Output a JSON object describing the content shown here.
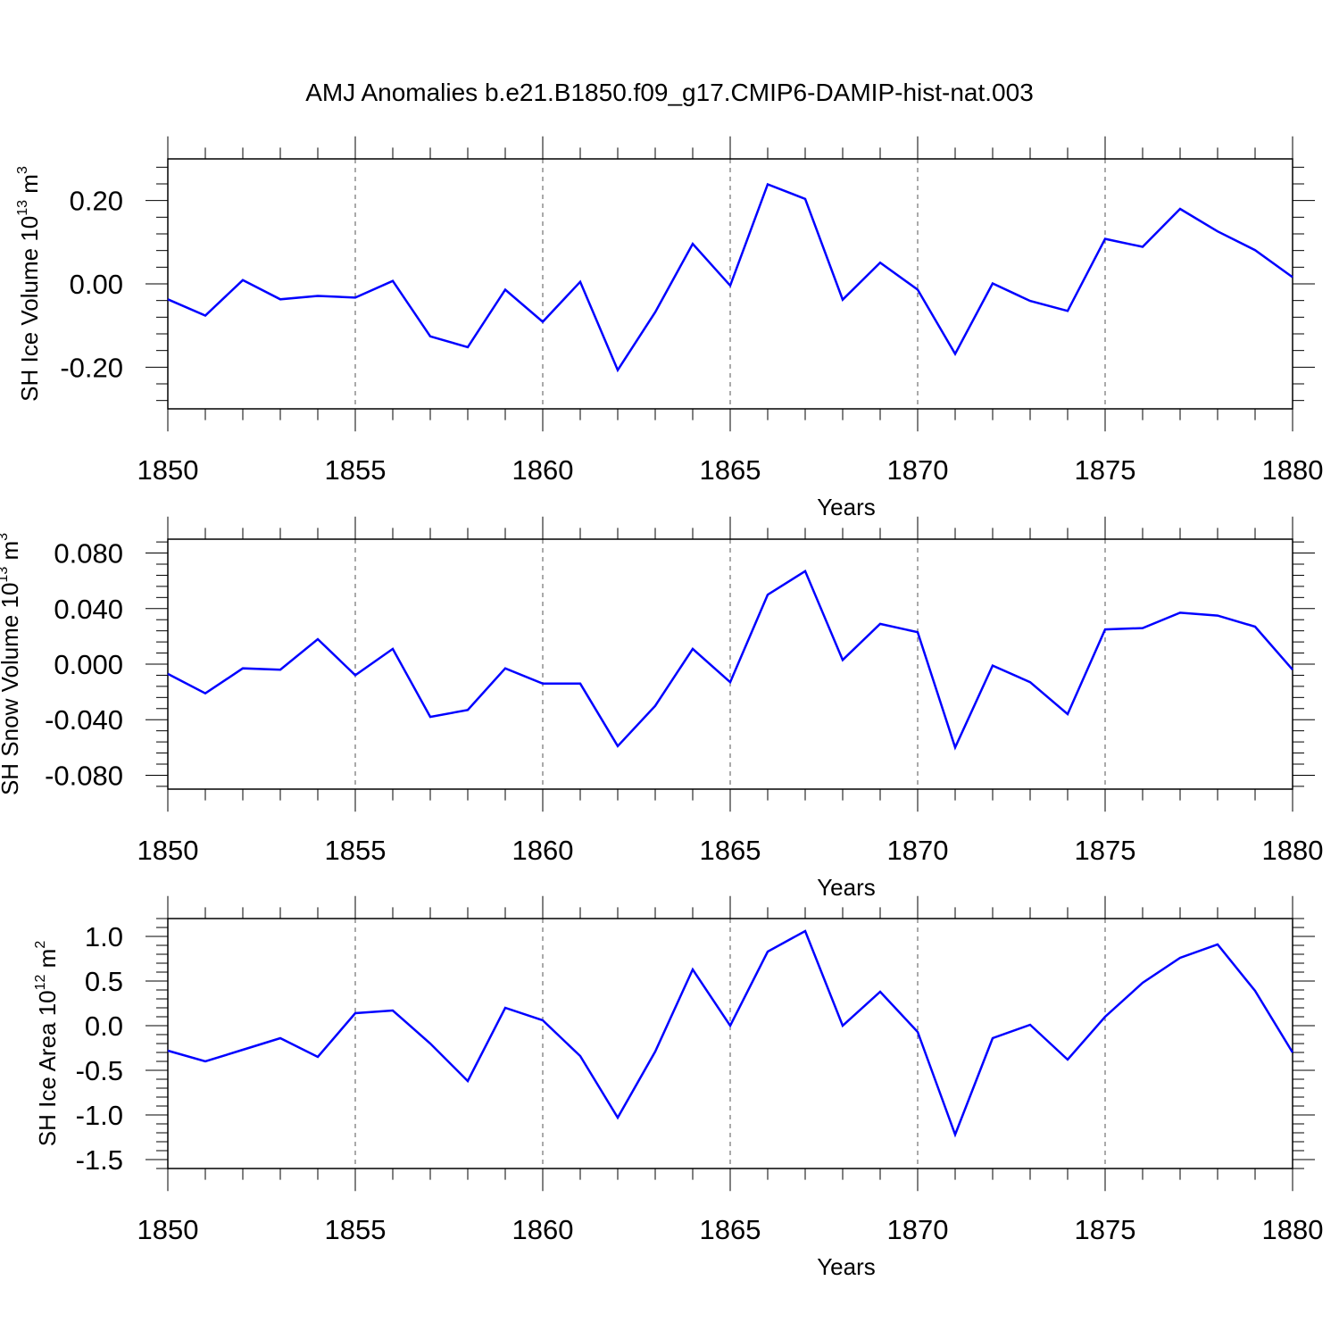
{
  "title": "AMJ Anomalies b.e21.B1850.f09_g17.CMIP6-DAMIP-hist-nat.003",
  "chart_data": [
    {
      "type": "line",
      "title": "AMJ Anomalies b.e21.B1850.f09_g17.CMIP6-DAMIP-hist-nat.003",
      "xlabel": "Years",
      "ylabel": "SH Ice Volume 10^13 m^3",
      "ylabel_base": "SH Ice Volume 10",
      "ylabel_exp": "13",
      "ylabel_unit": "m",
      "ylabel_unit_exp": "3",
      "xlim": [
        1850,
        1880
      ],
      "ylim": [
        -0.3,
        0.3
      ],
      "xticks": [
        1850,
        1855,
        1860,
        1865,
        1870,
        1875,
        1880
      ],
      "yticks": [
        -0.2,
        0.0,
        0.2
      ],
      "ytick_labels": [
        "-0.20",
        "0.00",
        "0.20"
      ],
      "grid": "vertical dashed at major x ticks",
      "color": "#0000ff",
      "x": [
        1850,
        1851,
        1852,
        1853,
        1854,
        1855,
        1856,
        1857,
        1858,
        1859,
        1860,
        1861,
        1862,
        1863,
        1864,
        1865,
        1866,
        1867,
        1868,
        1869,
        1870,
        1871,
        1872,
        1873,
        1874,
        1875,
        1876,
        1877,
        1878,
        1879,
        1880
      ],
      "y": [
        -0.037,
        -0.076,
        0.009,
        -0.037,
        -0.029,
        -0.033,
        0.007,
        -0.126,
        -0.152,
        -0.014,
        -0.091,
        0.005,
        -0.207,
        -0.068,
        0.096,
        -0.004,
        0.239,
        0.204,
        -0.038,
        0.051,
        -0.014,
        -0.168,
        0.001,
        -0.041,
        -0.065,
        0.108,
        0.089,
        0.18,
        0.126,
        0.081,
        0.016
      ]
    },
    {
      "type": "line",
      "xlabel": "Years",
      "ylabel": "SH Snow Volume 10^13 m^3",
      "ylabel_base": "SH Snow Volume 10",
      "ylabel_exp": "13",
      "ylabel_unit": "m",
      "ylabel_unit_exp": "3",
      "xlim": [
        1850,
        1880
      ],
      "ylim": [
        -0.09,
        0.09
      ],
      "xticks": [
        1850,
        1855,
        1860,
        1865,
        1870,
        1875,
        1880
      ],
      "yticks": [
        -0.08,
        -0.04,
        0.0,
        0.04,
        0.08
      ],
      "ytick_labels": [
        "-0.080",
        "-0.040",
        "0.000",
        "0.040",
        "0.080"
      ],
      "grid": "vertical dashed at major x ticks",
      "color": "#0000ff",
      "x": [
        1850,
        1851,
        1852,
        1853,
        1854,
        1855,
        1856,
        1857,
        1858,
        1859,
        1860,
        1861,
        1862,
        1863,
        1864,
        1865,
        1866,
        1867,
        1868,
        1869,
        1870,
        1871,
        1872,
        1873,
        1874,
        1875,
        1876,
        1877,
        1878,
        1879,
        1880
      ],
      "y": [
        -0.007,
        -0.021,
        -0.003,
        -0.004,
        0.018,
        -0.008,
        0.011,
        -0.038,
        -0.033,
        -0.003,
        -0.014,
        -0.014,
        -0.059,
        -0.03,
        0.011,
        -0.013,
        0.05,
        0.067,
        0.003,
        0.029,
        0.023,
        -0.06,
        -0.001,
        -0.013,
        -0.036,
        0.025,
        0.026,
        0.037,
        0.035,
        0.027,
        -0.004
      ]
    },
    {
      "type": "line",
      "xlabel": "Years",
      "ylabel": "SH Ice Area 10^12 m^2",
      "ylabel_base": "SH Ice Area 10",
      "ylabel_exp": "12",
      "ylabel_unit": "m",
      "ylabel_unit_exp": "2",
      "xlim": [
        1850,
        1880
      ],
      "ylim": [
        -1.6,
        1.2
      ],
      "xticks": [
        1850,
        1855,
        1860,
        1865,
        1870,
        1875,
        1880
      ],
      "yticks": [
        -1.5,
        -1.0,
        -0.5,
        0.0,
        0.5,
        1.0
      ],
      "ytick_labels": [
        "-1.5",
        "-1.0",
        "-0.5",
        "0.0",
        "0.5",
        "1.0"
      ],
      "grid": "vertical dashed at major x ticks",
      "color": "#0000ff",
      "x": [
        1850,
        1851,
        1852,
        1853,
        1854,
        1855,
        1856,
        1857,
        1858,
        1859,
        1860,
        1861,
        1862,
        1863,
        1864,
        1865,
        1866,
        1867,
        1868,
        1869,
        1870,
        1871,
        1872,
        1873,
        1874,
        1875,
        1876,
        1877,
        1878,
        1879,
        1880
      ],
      "y": [
        -0.28,
        -0.4,
        -0.27,
        -0.14,
        -0.35,
        0.14,
        0.17,
        -0.2,
        -0.62,
        0.2,
        0.06,
        -0.34,
        -1.03,
        -0.29,
        0.63,
        0.0,
        0.83,
        1.06,
        0.0,
        0.38,
        -0.07,
        -1.22,
        -0.14,
        0.01,
        -0.38,
        0.1,
        0.48,
        0.76,
        0.91,
        0.39,
        -0.3
      ]
    }
  ]
}
